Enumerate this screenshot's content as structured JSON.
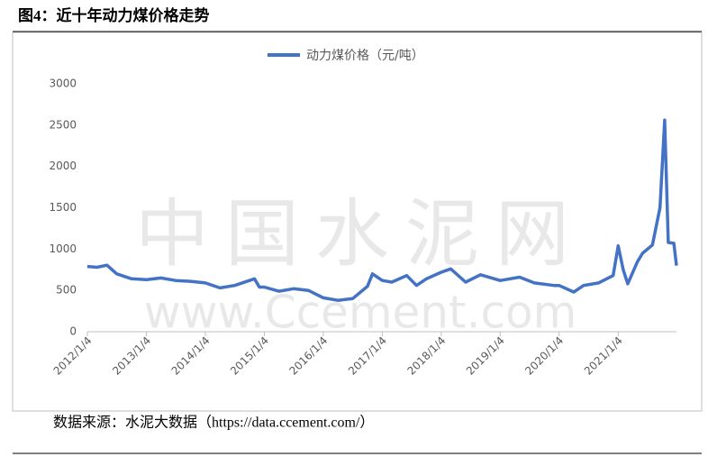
{
  "chart_data": {
    "type": "line",
    "title": "图4：近十年动力煤价格走势",
    "source": "数据来源：水泥大数据（https://data.ccement.com/）",
    "watermark": [
      "中国水泥网",
      "www.Ccement.com"
    ],
    "x": [
      "2012/1/4",
      "2012/3/4",
      "2012/5/4",
      "2012/7/4",
      "2012/10/4",
      "2013/1/4",
      "2013/4/4",
      "2013/7/4",
      "2013/10/4",
      "2014/1/4",
      "2014/4/4",
      "2014/7/4",
      "2014/11/4",
      "2014/12/4",
      "2015/1/4",
      "2015/4/4",
      "2015/7/4",
      "2015/10/4",
      "2016/1/4",
      "2016/4/4",
      "2016/7/4",
      "2016/10/4",
      "2016/11/4",
      "2017/1/4",
      "2017/3/4",
      "2017/6/4",
      "2017/8/4",
      "2017/10/4",
      "2018/1/4",
      "2018/3/4",
      "2018/6/4",
      "2018/9/4",
      "2019/1/4",
      "2019/5/4",
      "2019/8/4",
      "2019/12/4",
      "2020/1/4",
      "2020/4/4",
      "2020/6/4",
      "2020/9/4",
      "2020/12/4",
      "2021/1/4",
      "2021/2/4",
      "2021/3/4",
      "2021/5/4",
      "2021/6/4",
      "2021/8/4",
      "2021/9/20",
      "2021/10/19",
      "2021/11/10",
      "2021/12/15",
      "2021/12/31"
    ],
    "series": [
      {
        "name": "动力煤价格（元/吨）",
        "color": "#4472c4",
        "values": [
          790,
          780,
          805,
          700,
          640,
          630,
          650,
          620,
          610,
          590,
          530,
          560,
          640,
          540,
          540,
          490,
          520,
          500,
          410,
          380,
          400,
          550,
          700,
          620,
          600,
          680,
          560,
          640,
          720,
          760,
          600,
          690,
          620,
          660,
          590,
          560,
          560,
          480,
          560,
          590,
          680,
          1040,
          750,
          580,
          850,
          950,
          1050,
          1500,
          2560,
          1080,
          1070,
          800
        ]
      }
    ],
    "xlim": [
      "2012/1/4",
      "2021/12/31"
    ],
    "xticks": [
      "2012/1/4",
      "2013/1/4",
      "2014/1/4",
      "2015/1/4",
      "2016/1/4",
      "2017/1/4",
      "2018/1/4",
      "2019/1/4",
      "2020/1/4",
      "2021/1/4"
    ],
    "ylim": [
      0,
      3000
    ],
    "yticks": [
      0,
      500,
      1000,
      1500,
      2000,
      2500,
      3000
    ],
    "grid": false,
    "legend": "top"
  }
}
